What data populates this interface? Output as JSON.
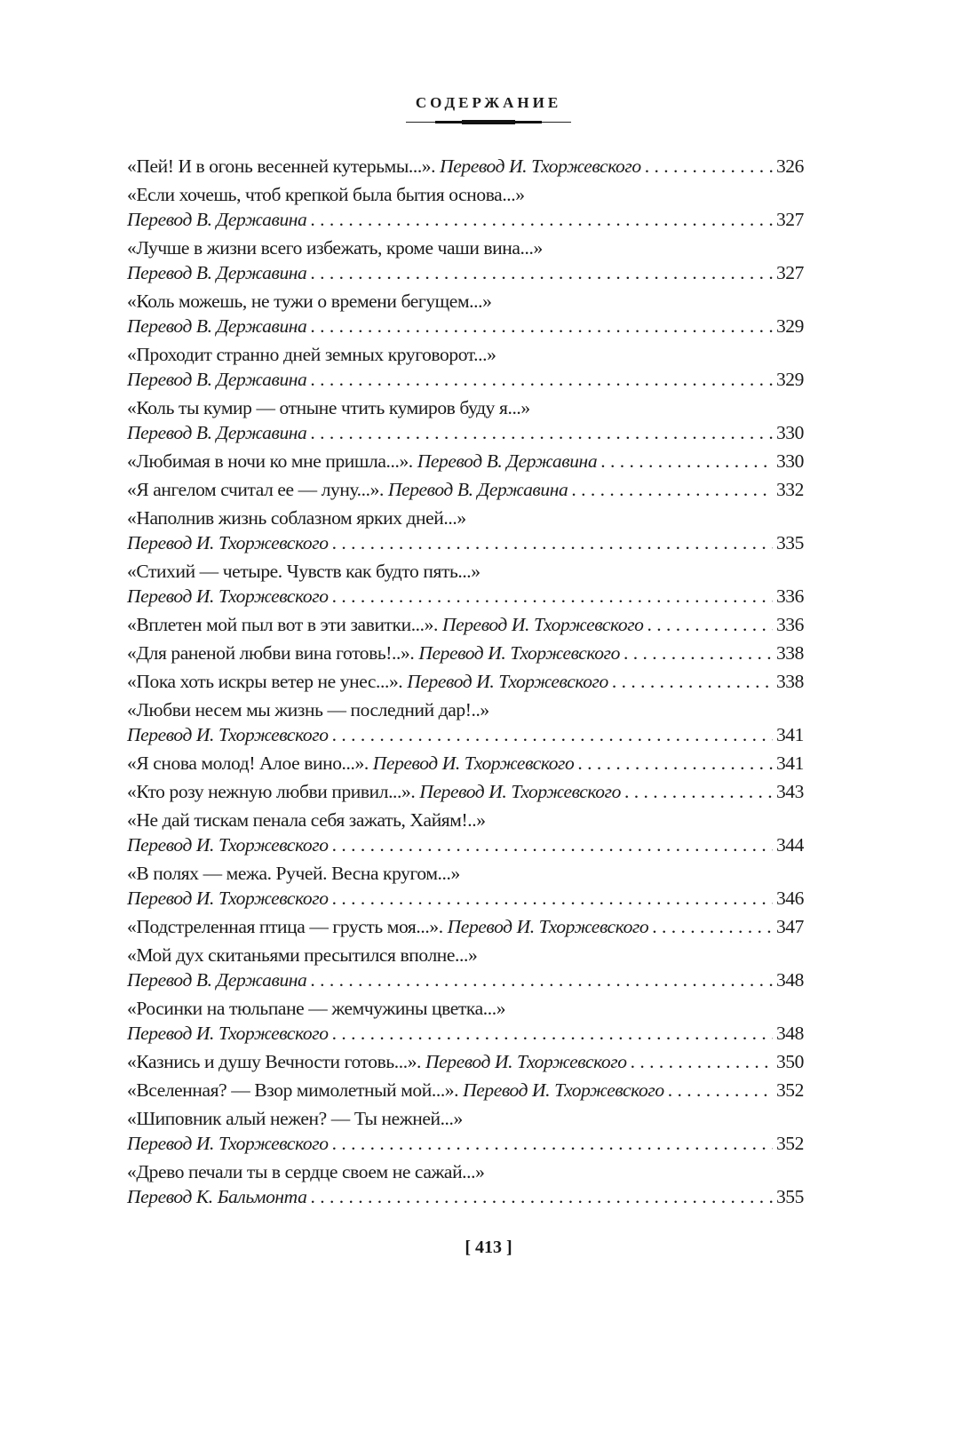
{
  "header": {
    "title": "СОДЕРЖАНИЕ"
  },
  "entries": [
    {
      "title": "«Пей! И в огонь весенней кутерьмы...».",
      "translator": "Перевод И. Тхоржевского",
      "page": "326",
      "inline": true
    },
    {
      "title": "«Если хочешь, чтоб крепкой была бытия основа...»",
      "translator": "Перевод В. Державина",
      "page": "327",
      "inline": false
    },
    {
      "title": "«Лучше в жизни всего избежать, кроме чаши вина...»",
      "translator": "Перевод В. Державина",
      "page": "327",
      "inline": false
    },
    {
      "title": "«Коль можешь, не тужи о времени бегущем...»",
      "translator": "Перевод В. Державина",
      "page": "329",
      "inline": false
    },
    {
      "title": "«Проходит странно дней земных круговорот...»",
      "translator": "Перевод В. Державина",
      "page": "329",
      "inline": false
    },
    {
      "title": "«Коль ты кумир — отныне чтить кумиров буду я...»",
      "translator": "Перевод В. Державина",
      "page": "330",
      "inline": false
    },
    {
      "title": "«Любимая в ночи ко мне пришла...».",
      "translator": "Перевод В. Державина",
      "page": "330",
      "inline": true
    },
    {
      "title": "«Я ангелом считал ее — луну...».",
      "translator": "Перевод В. Державина",
      "page": "332",
      "inline": true
    },
    {
      "title": "«Наполнив жизнь соблазном ярких дней...»",
      "translator": "Перевод И. Тхоржевского",
      "page": "335",
      "inline": false
    },
    {
      "title": "«Стихий — четыре. Чувств как будто пять...»",
      "translator": "Перевод И. Тхоржевского",
      "page": "336",
      "inline": false
    },
    {
      "title": "«Вплетен мой пыл вот в эти завитки...».",
      "translator": "Перевод И. Тхоржевского",
      "page": "336",
      "inline": true
    },
    {
      "title": "«Для раненой любви вина готовь!..».",
      "translator": "Перевод И. Тхоржевского",
      "page": "338",
      "inline": true
    },
    {
      "title": "«Пока хоть искры ветер не унес...».",
      "translator": "Перевод И. Тхоржевского",
      "page": "338",
      "inline": true
    },
    {
      "title": "«Любви несем мы жизнь — последний дар!..»",
      "translator": "Перевод И. Тхоржевского",
      "page": "341",
      "inline": false
    },
    {
      "title": "«Я снова молод! Алое вино...».",
      "translator": "Перевод И. Тхоржевского",
      "page": "341",
      "inline": true
    },
    {
      "title": "«Кто розу нежную любви привил...».",
      "translator": "Перевод И. Тхоржевского",
      "page": "343",
      "inline": true
    },
    {
      "title": "«Не дай тискам пенала себя зажать, Хайям!..»",
      "translator": "Перевод И. Тхоржевского",
      "page": "344",
      "inline": false
    },
    {
      "title": "«В полях — межа. Ручей. Весна кругом...»",
      "translator": "Перевод И. Тхоржевского",
      "page": "346",
      "inline": false
    },
    {
      "title": "«Подстреленная птица — грусть моя...».",
      "translator": "Перевод И. Тхоржевского",
      "page": "347",
      "inline": true
    },
    {
      "title": "«Мой дух скитаньями пресытился вполне...»",
      "translator": "Перевод В. Державина",
      "page": "348",
      "inline": false
    },
    {
      "title": "«Росинки на тюльпане — жемчужины цветка...»",
      "translator": "Перевод И. Тхоржевского",
      "page": "348",
      "inline": false
    },
    {
      "title": "«Казнись и душу Вечности готовь...».",
      "translator": "Перевод И. Тхоржевского",
      "page": "350",
      "inline": true
    },
    {
      "title": "«Вселенная? — Взор мимолетный мой...».",
      "translator": "Перевод И. Тхоржевского",
      "page": "352",
      "inline": true
    },
    {
      "title": "«Шиповник алый нежен? — Ты нежней...»",
      "translator": "Перевод И. Тхоржевского",
      "page": "352",
      "inline": false
    },
    {
      "title": "«Древо печали ты в сердце своем не сажай...»",
      "translator": "Перевод К. Бальмонта",
      "page": "355",
      "inline": false
    }
  ],
  "footer": {
    "page_number": "[ 413 ]"
  }
}
